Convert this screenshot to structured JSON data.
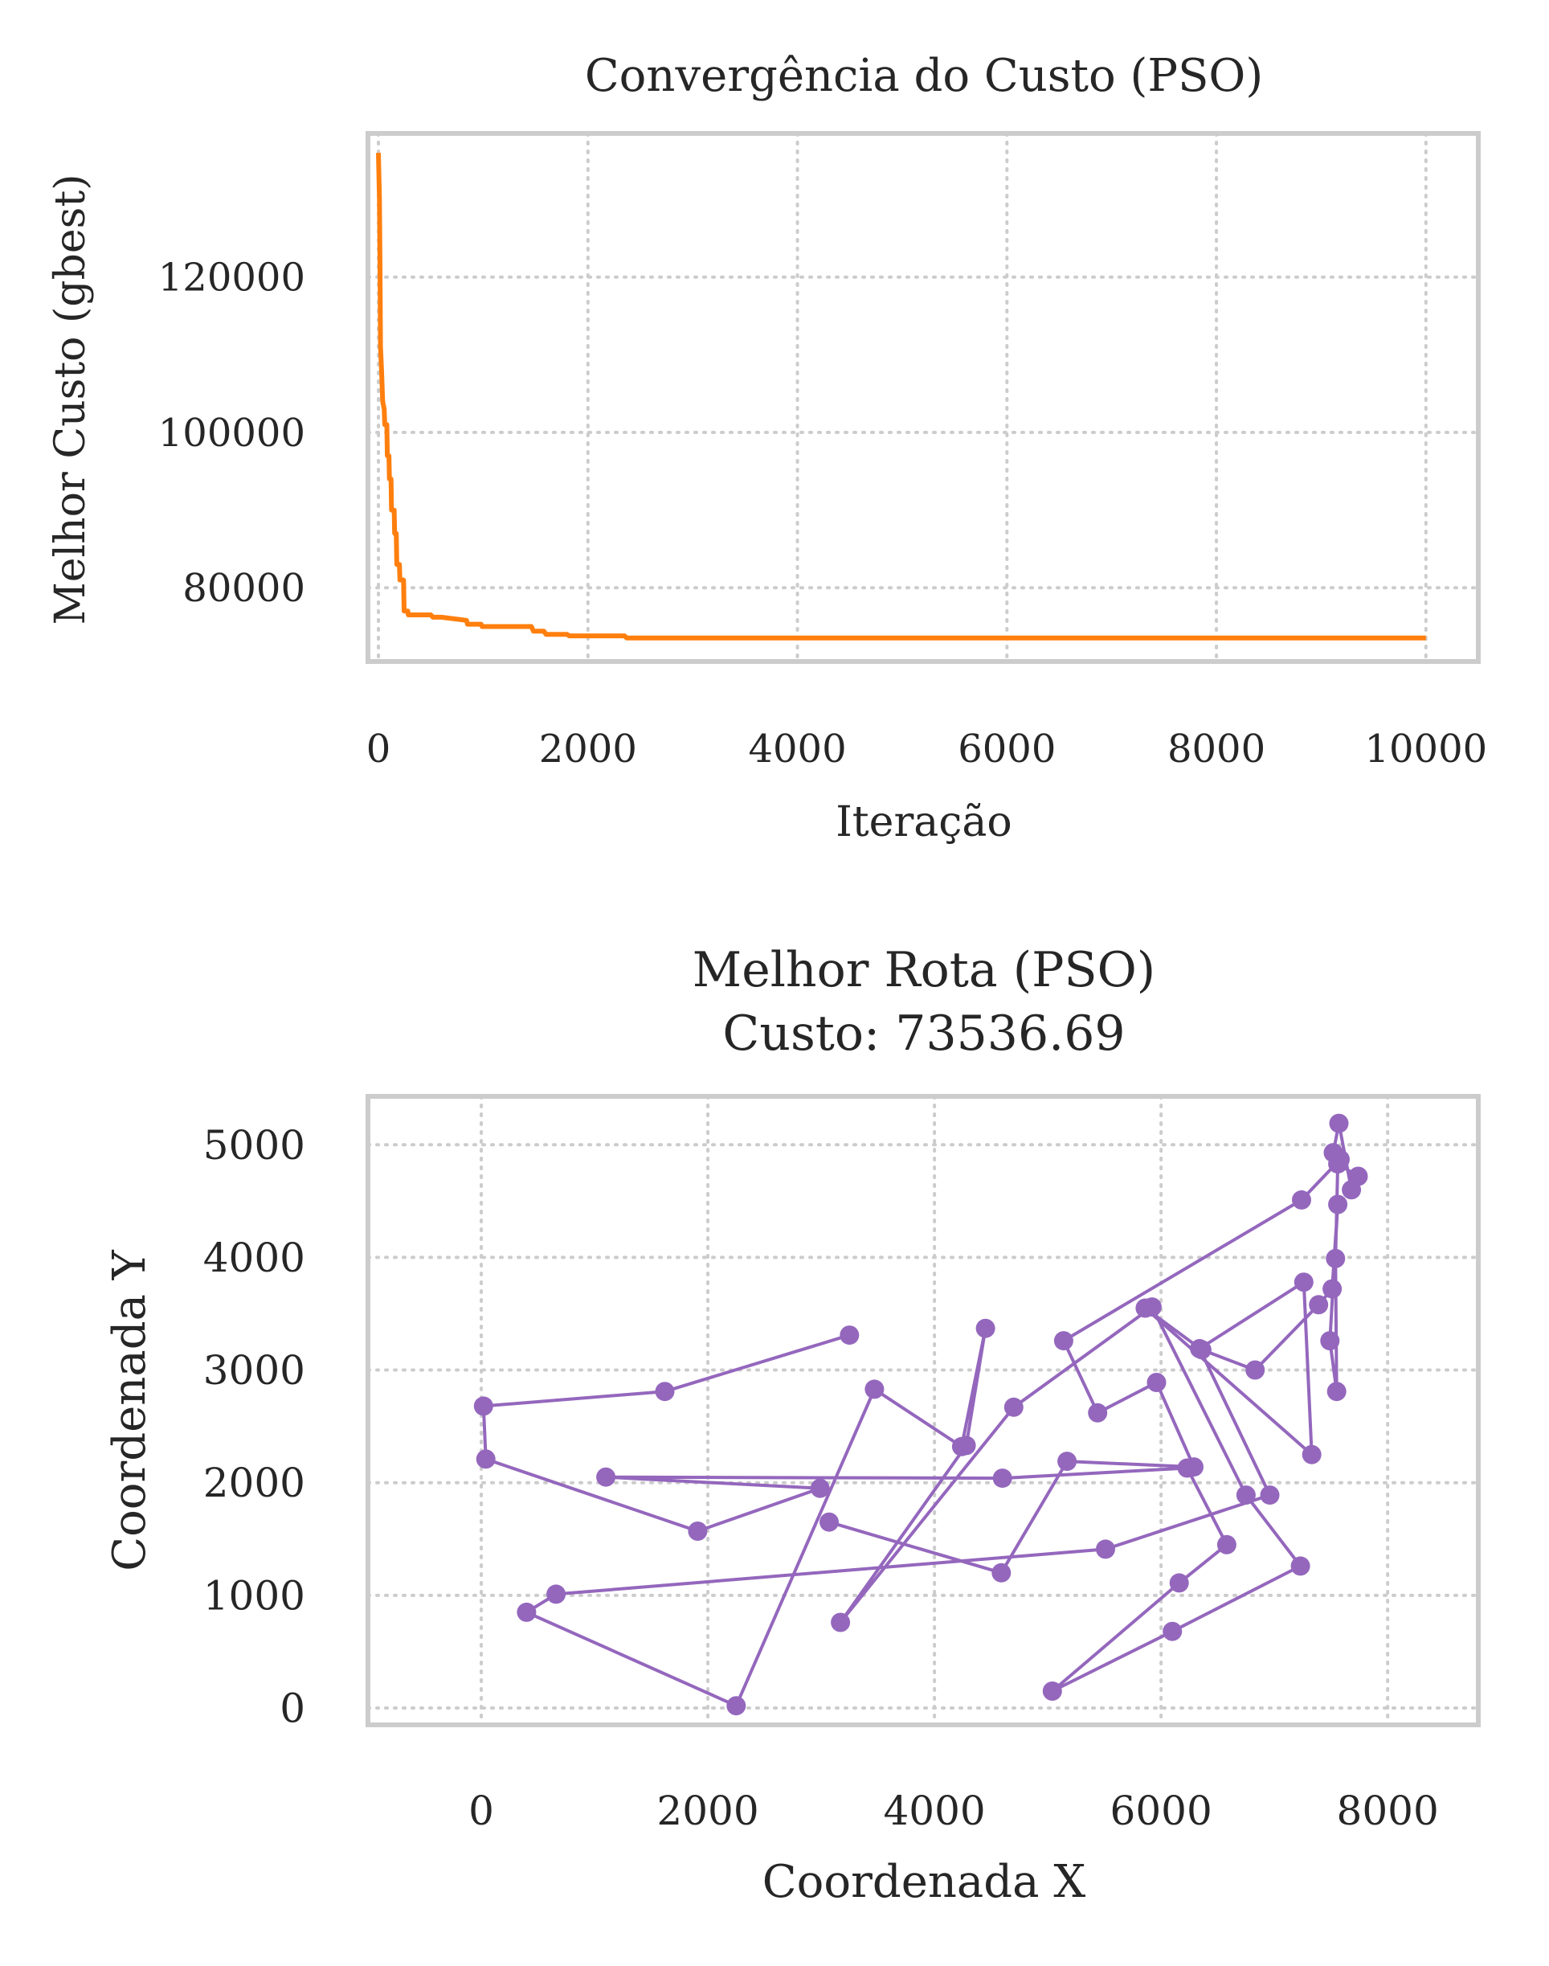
{
  "chart_data": [
    {
      "type": "line",
      "title": "Convergência do Custo (PSO)",
      "xlabel": "Iteração",
      "ylabel": "Melhor Custo (gbest)",
      "xlim": [
        -100,
        10500
      ],
      "ylim": [
        70500,
        138500
      ],
      "x_ticks": [
        0,
        2000,
        4000,
        6000,
        8000,
        10000
      ],
      "y_ticks": [
        80000,
        100000,
        120000
      ],
      "grid": true,
      "colors": {
        "line": "#ff7f0e"
      },
      "series": [
        {
          "x": [
            0,
            10,
            15,
            20,
            30,
            40,
            55,
            60,
            80,
            85,
            100,
            105,
            120,
            125,
            150,
            155,
            170,
            175,
            200,
            205,
            240,
            245,
            280,
            285,
            500,
            520,
            600,
            840,
            850,
            980,
            990,
            1460,
            1480,
            1580,
            1600,
            1800,
            1820,
            2350,
            2370,
            10000
          ],
          "y": [
            136000,
            130000,
            121000,
            111000,
            108000,
            104000,
            103000,
            101000,
            101000,
            97000,
            97000,
            94000,
            94000,
            90000,
            90000,
            87000,
            87000,
            83000,
            83000,
            81000,
            81000,
            77000,
            77000,
            76500,
            76500,
            76200,
            76200,
            75800,
            75300,
            75300,
            75000,
            75000,
            74400,
            74400,
            74000,
            74000,
            73800,
            73800,
            73536.69,
            73536.69
          ]
        }
      ]
    },
    {
      "type": "scatter",
      "title": "Melhor Rota (PSO)",
      "subtitle": "Custo: 73536.69",
      "xlabel": "Coordenada X",
      "ylabel": "Coordenada Y",
      "xlim": [
        -1000,
        8800
      ],
      "ylim": [
        -150,
        5430
      ],
      "x_ticks": [
        0,
        2000,
        4000,
        6000,
        8000
      ],
      "y_ticks": [
        0,
        1000,
        2000,
        3000,
        4000,
        5000
      ],
      "grid": true,
      "colors": {
        "route": "#9467bd"
      },
      "series": [
        {
          "x": [
            3250,
            1620,
            20,
            40,
            1910,
            2990,
            1100,
            4600,
            6230,
            6580,
            6160,
            5040,
            6100,
            7230,
            6750,
            5920,
            4700,
            3170,
            4280,
            4450,
            4240,
            3470,
            2250,
            400,
            660,
            5510,
            6960,
            6340,
            7260,
            7330,
            5860,
            6360,
            6830,
            7390,
            7510,
            7560,
            7490,
            7550,
            7540,
            7560,
            7740,
            7680,
            7570,
            7520,
            7580,
            7240,
            5140,
            5440,
            5960,
            6290,
            5170,
            4590,
            3070
          ],
          "y": [
            3310,
            2810,
            2680,
            2210,
            1570,
            1950,
            2050,
            2040,
            2130,
            1450,
            1110,
            150,
            680,
            1260,
            1890,
            3560,
            2670,
            760,
            2330,
            3370,
            2320,
            2830,
            20,
            850,
            1010,
            1410,
            1890,
            3190,
            3780,
            2250,
            3550,
            3180,
            3000,
            3580,
            3720,
            4470,
            3260,
            2810,
            3990,
            4830,
            4720,
            4600,
            5190,
            4930,
            4870,
            4510,
            3260,
            2620,
            2890,
            2140,
            2190,
            1200,
            1650
          ]
        }
      ]
    }
  ]
}
